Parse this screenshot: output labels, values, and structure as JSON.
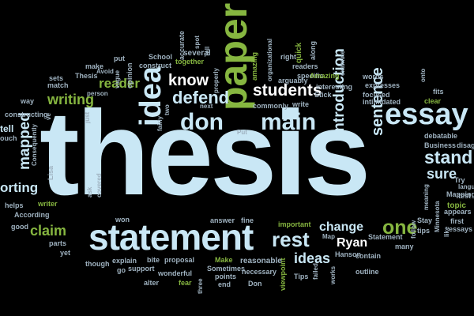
{
  "image": {
    "caption": "Word cloud about writing a thesis statement",
    "background_color": "#000000",
    "palette": {
      "light_blue": "#c9e7f5",
      "green": "#86b640",
      "white": "#ffffff",
      "blue": "#4d89b3",
      "gray": "#9fb2c0"
    }
  },
  "words": {
    "thesis": "thesis",
    "statement": "statement",
    "essay": "essay",
    "paper": "paper",
    "idea": "idea",
    "main": "main",
    "don": "don",
    "defend": "defend",
    "know": "know",
    "students": "students",
    "introduction": "introduction",
    "sentence": "sentence",
    "stand": "stand",
    "sure": "sure",
    "rest": "rest",
    "one": "one",
    "change": "change",
    "claim": "claim",
    "ideas": "ideas",
    "ryan": "Ryan",
    "reader": "reader",
    "writing": "writing",
    "mapped": "mapped",
    "supporting": "orting",
    "several": "several",
    "school": "School",
    "make": "make",
    "put": "put",
    "tell": "Tell",
    "spot": "spot",
    "accurate": "accurate",
    "together": "together",
    "construct": "construct",
    "opinion": "opinion",
    "properly": "properly",
    "organizational": "organizational",
    "right": "right",
    "quick": "quick",
    "along": "along",
    "examine": "examine",
    "words": "words",
    "expresses": "expresses",
    "onto": "onto",
    "fits": "fits",
    "focused": "focused",
    "intimidated": "intimidated",
    "clear": "clear",
    "debatable": "debatable",
    "business": "Business",
    "disag": "disag",
    "try": "Try",
    "langu": "langu",
    "test": "test",
    "mapping": "Mapping",
    "stay": "Stay",
    "tips": "tips",
    "like": "like",
    "first": "first",
    "appears": "appears",
    "essays": "essays",
    "topic": "topic",
    "minnesota": "Minnesota",
    "meaning": "meaning",
    "follow": "follow",
    "sets": "sets",
    "match": "match",
    "way": "way",
    "constructing": "constructing",
    "tell_left": "tell",
    "each": "ouch",
    "ve": "ve",
    "consequently": "Consequently",
    "lisa": "Lisa",
    "helps": "helps",
    "writer": "writer",
    "according": "According",
    "good": "good",
    "parts": "parts",
    "yet": "yet",
    "ask": "ask",
    "covered": "covered",
    "won": "won",
    "answer": "answer",
    "fine": "fine",
    "important": "important",
    "map": "Map",
    "statement_small": "Statement",
    "many": "many",
    "contain": "contain",
    "hanson": "Hanson",
    "outline": "outline",
    "failed": "failed",
    "tips_small": "Tips",
    "works": "works",
    "viewpoint": "viewpoint",
    "necessary": "necessary",
    "reasonable": "reasonable",
    "make_small": "Make",
    "sometimes": "Sometimes",
    "points": "points",
    "end": "end",
    "three": "three",
    "proposal": "proposal",
    "bite": "bite",
    "explain": "explain",
    "support": "support",
    "wonderful": "wonderful",
    "fear": "fear",
    "alter": "alter",
    "though": "though",
    "go": "go",
    "amazing": "amazing",
    "amazing_cap": "Amazing",
    "arguably": "arguably",
    "specific": "specific",
    "readers": "readers",
    "interesting": "interesting",
    "stick": "Stick",
    "write": "write",
    "commonly": "commonly",
    "put_cap": "Put",
    "next": "next",
    "fairly": "fairly",
    "two": "two",
    "person": "person",
    "just": "just",
    "vague": "vague",
    "avoid": "Avoid",
    "thesis_small": "Thesis",
    "don_small": "Don"
  }
}
